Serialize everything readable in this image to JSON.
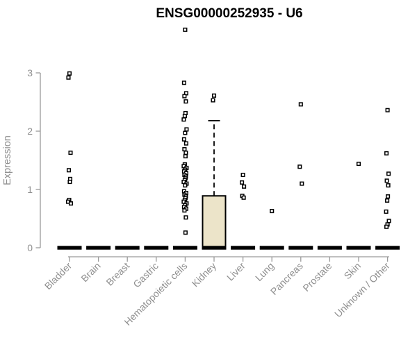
{
  "chart_data": {
    "type": "boxplot",
    "title": "ENSG00000252935 - U6",
    "xlabel": "",
    "ylabel": "Expression",
    "ylim": [
      0,
      3
    ],
    "yticks": [
      0,
      1,
      2,
      3
    ],
    "grid": false,
    "legend": false,
    "categories": [
      "Bladder",
      "Brain",
      "Breast",
      "Gastric",
      "Hematopoietic cells",
      "Kidney",
      "Liver",
      "Lung",
      "Pancreas",
      "Prostate",
      "Skin",
      "Unknown / Other"
    ],
    "series": [
      {
        "name": "Bladder",
        "q1": 0,
        "median": 0,
        "q3": 0,
        "whisker_low": 0,
        "whisker_high": 0,
        "outliers": [
          2.99,
          2.92,
          1.63,
          1.33,
          1.18,
          1.13,
          0.82,
          0.79,
          0.76
        ]
      },
      {
        "name": "Brain",
        "q1": 0,
        "median": 0,
        "q3": 0,
        "whisker_low": 0,
        "whisker_high": 0,
        "outliers": []
      },
      {
        "name": "Breast",
        "q1": 0,
        "median": 0,
        "q3": 0,
        "whisker_low": 0,
        "whisker_high": 0,
        "outliers": []
      },
      {
        "name": "Gastric",
        "q1": 0,
        "median": 0,
        "q3": 0,
        "whisker_low": 0,
        "whisker_high": 0,
        "outliers": []
      },
      {
        "name": "Hematopoietic cells",
        "q1": 0,
        "median": 0,
        "q3": 0,
        "whisker_low": 0,
        "whisker_high": 0,
        "outliers": [
          3.74,
          2.83,
          2.65,
          2.6,
          2.51,
          2.31,
          2.26,
          2.2,
          2.03,
          1.97,
          1.86,
          1.79,
          1.69,
          1.63,
          1.57,
          1.43,
          1.4,
          1.37,
          1.34,
          1.31,
          1.28,
          1.25,
          1.22,
          1.19,
          1.16,
          1.13,
          1.1,
          1.07,
          0.97,
          0.94,
          0.91,
          0.88,
          0.85,
          0.82,
          0.79,
          0.76,
          0.73,
          0.7,
          0.67,
          0.64,
          0.52,
          0.26
        ]
      },
      {
        "name": "Kidney",
        "q1": 0,
        "median": 0,
        "q3": 0.89,
        "whisker_low": 0,
        "whisker_high": 2.18,
        "outliers": [
          2.61,
          2.53
        ]
      },
      {
        "name": "Liver",
        "q1": 0,
        "median": 0,
        "q3": 0,
        "whisker_low": 0,
        "whisker_high": 0,
        "outliers": [
          1.25,
          1.12,
          1.05,
          0.89,
          0.86
        ]
      },
      {
        "name": "Lung",
        "q1": 0,
        "median": 0,
        "q3": 0,
        "whisker_low": 0,
        "whisker_high": 0,
        "outliers": [
          0.63
        ]
      },
      {
        "name": "Pancreas",
        "q1": 0,
        "median": 0,
        "q3": 0,
        "whisker_low": 0,
        "whisker_high": 0,
        "outliers": [
          2.46,
          1.39,
          1.1
        ]
      },
      {
        "name": "Prostate",
        "q1": 0,
        "median": 0,
        "q3": 0,
        "whisker_low": 0,
        "whisker_high": 0,
        "outliers": []
      },
      {
        "name": "Skin",
        "q1": 0,
        "median": 0,
        "q3": 0,
        "whisker_low": 0,
        "whisker_high": 0,
        "outliers": [
          1.44
        ]
      },
      {
        "name": "Unknown / Other",
        "q1": 0,
        "median": 0,
        "q3": 0,
        "whisker_low": 0,
        "whisker_high": 0,
        "outliers": [
          2.36,
          1.62,
          1.27,
          1.15,
          1.07,
          0.88,
          0.81,
          0.62,
          0.46,
          0.4,
          0.36
        ]
      }
    ],
    "colors": {
      "box_fill": "#ece4c9",
      "box_stroke": "#000000",
      "point_fill": "#ffffff",
      "point_stroke": "#000000",
      "median": "#000000",
      "axis": "#9a9a9a",
      "tick_text": "#8f8f8f",
      "title_text": "#000000",
      "background": "#ffffff"
    }
  }
}
